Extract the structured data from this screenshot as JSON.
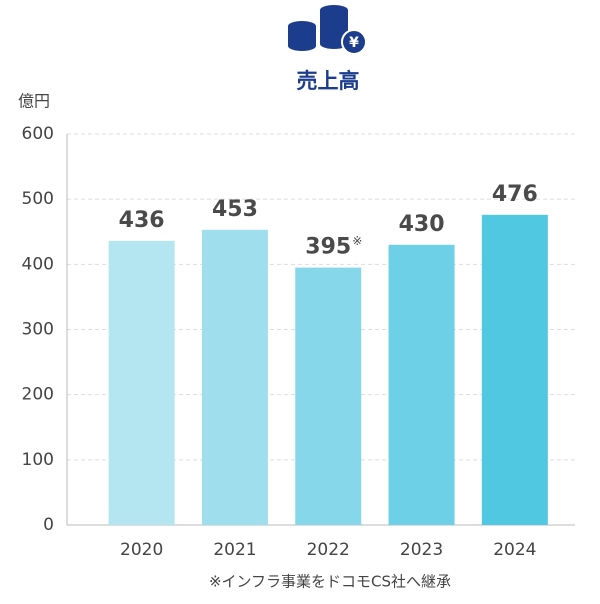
{
  "chart_data": {
    "type": "bar",
    "title": "売上高",
    "y_unit": "億円",
    "categories": [
      "2020",
      "2021",
      "2022",
      "2023",
      "2024"
    ],
    "values": [
      436,
      453,
      395,
      430,
      476
    ],
    "colors": [
      "#b3e6f1",
      "#9fdeed",
      "#87d7ea",
      "#6dd0e6",
      "#50c8e1"
    ],
    "note_marker": "※",
    "note_category": "2022",
    "footnote": "※インフラ事業をドコモCS社へ継承",
    "ylim": [
      0,
      600
    ],
    "yticks": [
      0,
      100,
      200,
      300,
      400,
      500,
      600
    ],
    "grid": true
  }
}
